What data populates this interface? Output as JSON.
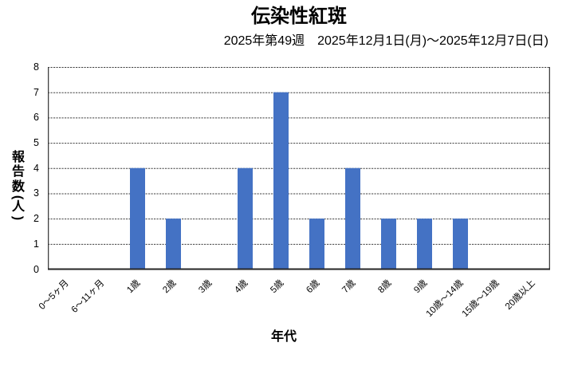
{
  "chart_data": {
    "type": "bar",
    "title": "伝染性紅斑",
    "subtitle": "2025年第49週　2025年12月1日(月)～2025年12月7日(日)",
    "xlabel": "年代",
    "ylabel": "報告数（人）",
    "categories": [
      "0～5ヶ月",
      "6～11ヶ月",
      "1歳",
      "2歳",
      "3歳",
      "4歳",
      "5歳",
      "6歳",
      "7歳",
      "8歳",
      "9歳",
      "10歳～14歳",
      "15歳～19歳",
      "20歳以上"
    ],
    "values": [
      0,
      0,
      4,
      2,
      0,
      4,
      7,
      2,
      4,
      2,
      2,
      2,
      0,
      0
    ],
    "ylim": [
      0,
      8
    ],
    "ytick_step": 1,
    "yticks": [
      0,
      1,
      2,
      3,
      4,
      5,
      6,
      7,
      8
    ],
    "grid": "horizontal-dashed",
    "legend_position": "none",
    "bar_color": "#4472C4",
    "gridline_color": "#404040",
    "axis_color": "#262626",
    "text_color": "#000000"
  }
}
